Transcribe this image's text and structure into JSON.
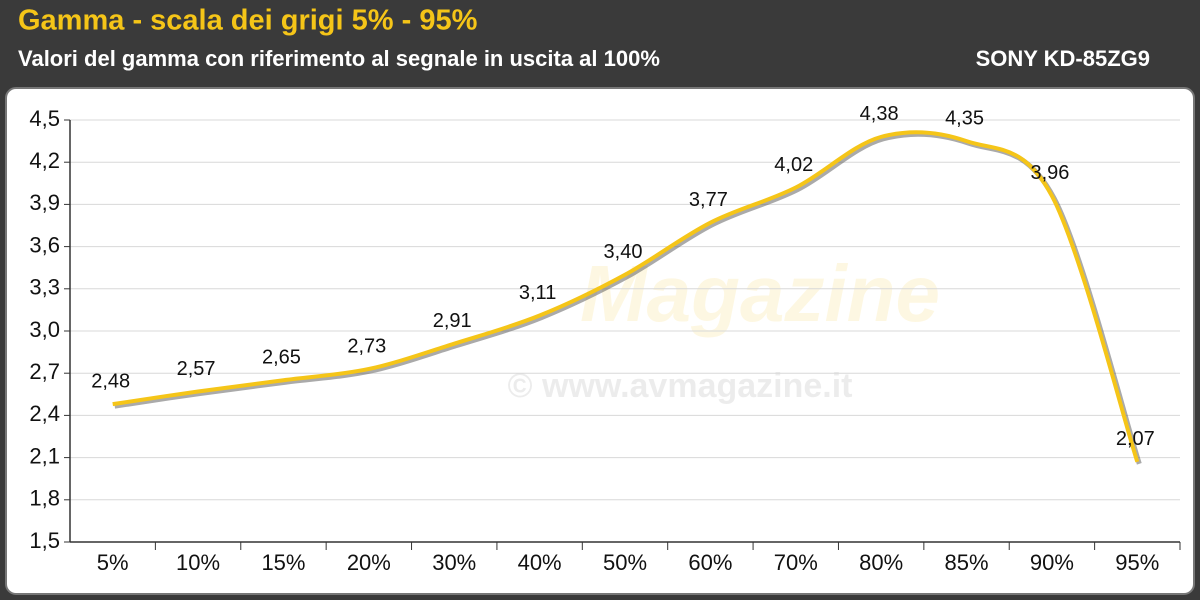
{
  "chart_data": {
    "type": "line",
    "title": "Gamma - scala dei grigi 5% - 95%",
    "subtitle": "Valori del gamma con riferimento al segnale in uscita al 100%",
    "model": "SONY KD-85ZG9",
    "watermark": [
      "Magazine",
      "© www.avmagazine.it"
    ],
    "categories": [
      "5%",
      "10%",
      "15%",
      "20%",
      "30%",
      "40%",
      "50%",
      "60%",
      "70%",
      "80%",
      "85%",
      "90%",
      "95%"
    ],
    "series": [
      {
        "name": "Gamma",
        "color": "#f5c518",
        "values": [
          2.48,
          2.57,
          2.65,
          2.73,
          2.91,
          3.11,
          3.4,
          3.77,
          4.02,
          4.38,
          4.35,
          3.96,
          2.07
        ],
        "value_labels": [
          "2,48",
          "2,57",
          "2,65",
          "2,73",
          "2,91",
          "3,11",
          "3,40",
          "3,77",
          "4,02",
          "4,38",
          "4,35",
          "3,96",
          "2,07"
        ]
      }
    ],
    "ylim": [
      1.5,
      4.5
    ],
    "yticks": [
      {
        "value": 1.5,
        "label": "1,5"
      },
      {
        "value": 1.8,
        "label": "1,8"
      },
      {
        "value": 2.1,
        "label": "2,1"
      },
      {
        "value": 2.4,
        "label": "2,4"
      },
      {
        "value": 2.7,
        "label": "2,7"
      },
      {
        "value": 3.0,
        "label": "3,0"
      },
      {
        "value": 3.3,
        "label": "3,3"
      },
      {
        "value": 3.6,
        "label": "3,6"
      },
      {
        "value": 3.9,
        "label": "3,9"
      },
      {
        "value": 4.2,
        "label": "4,2"
      },
      {
        "value": 4.5,
        "label": "4,5"
      }
    ],
    "grid": true
  }
}
